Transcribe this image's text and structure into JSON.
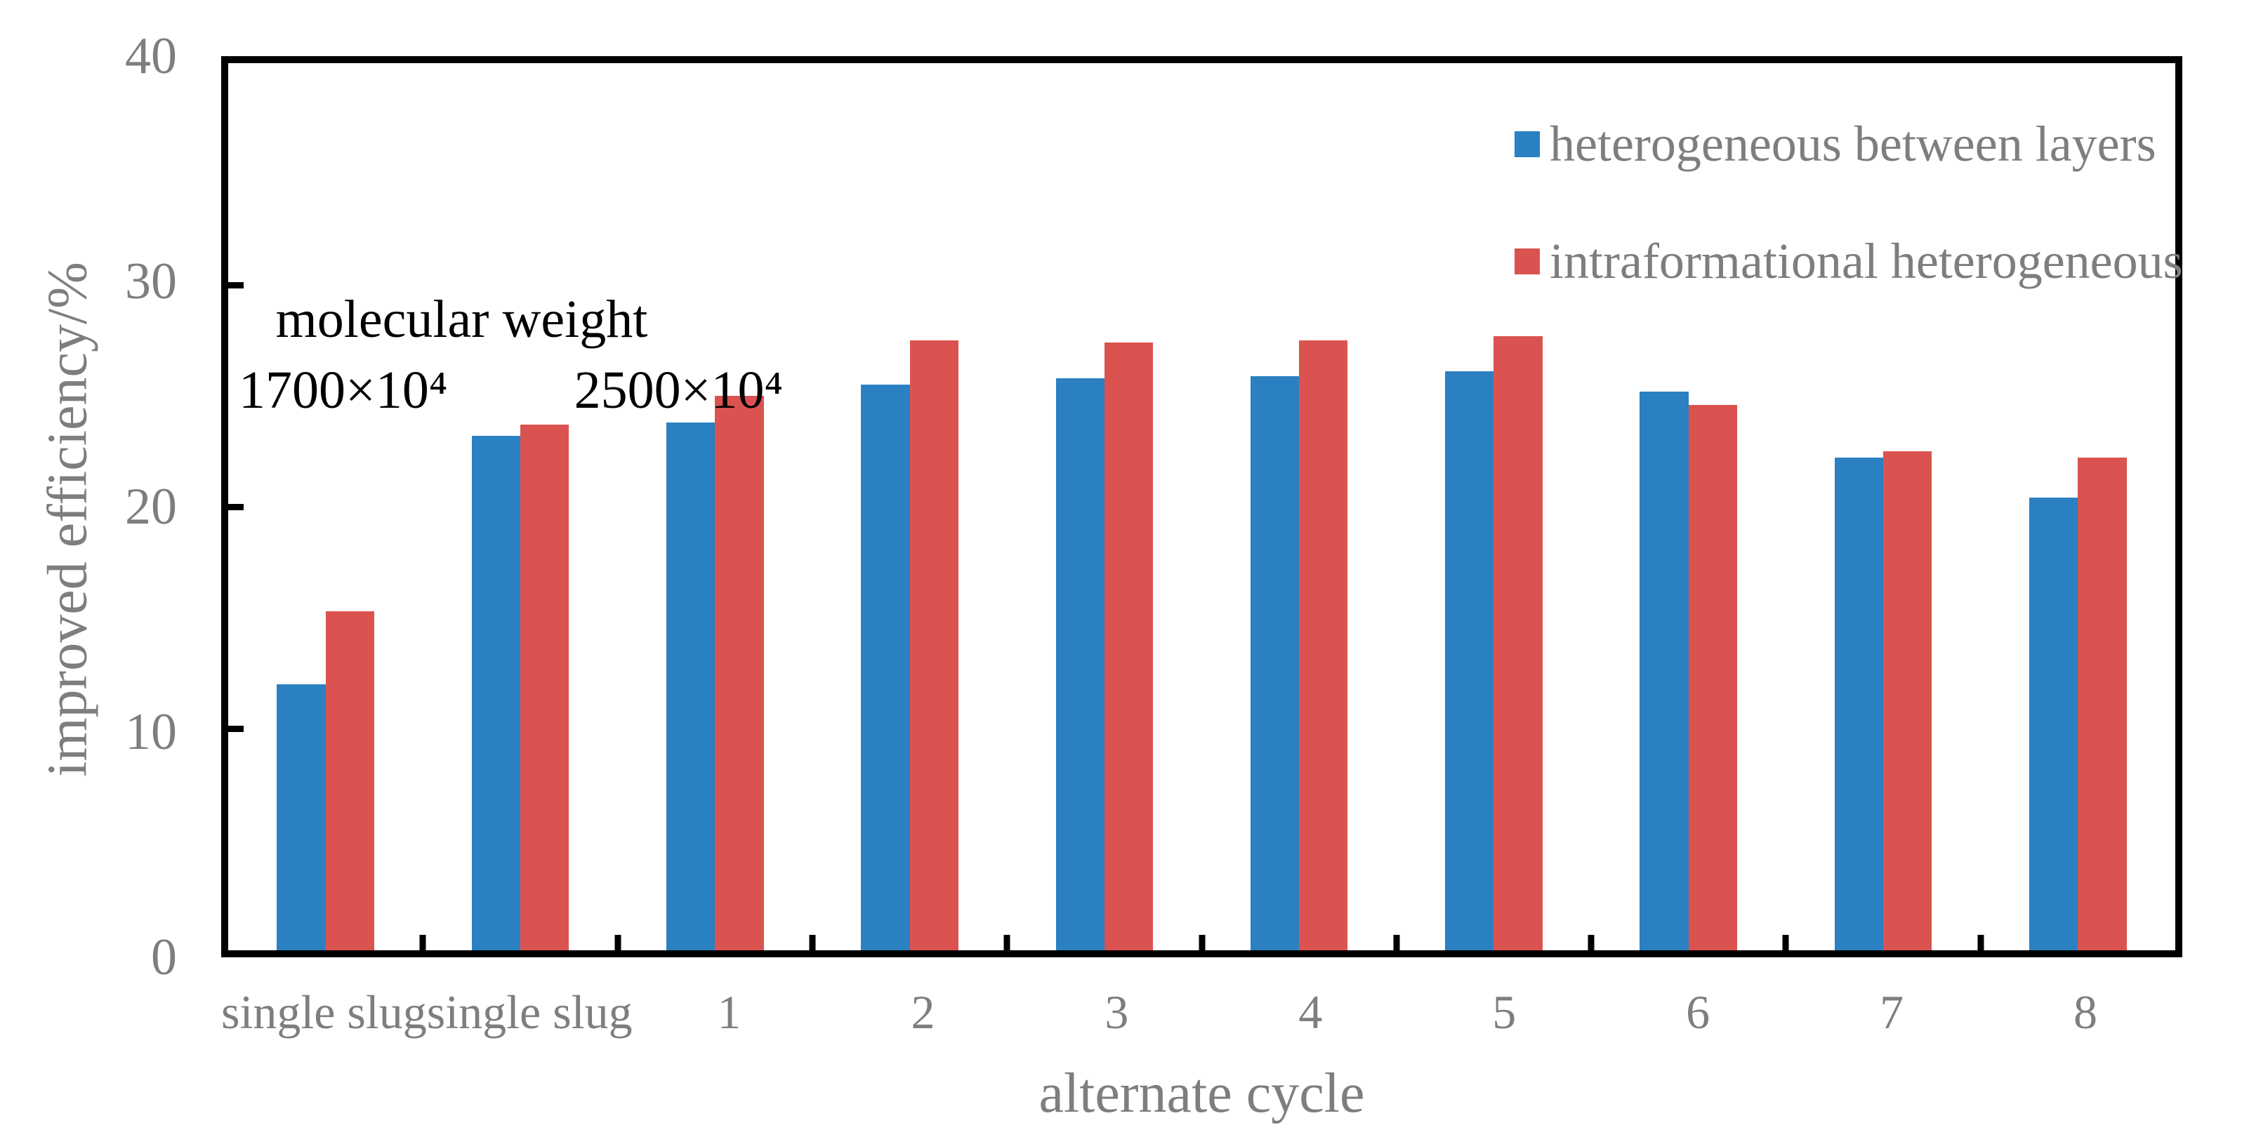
{
  "chart_data": {
    "type": "bar",
    "title": "",
    "categories": [
      "single slug",
      "single slug",
      "1",
      "2",
      "3",
      "4",
      "5",
      "6",
      "7",
      "8"
    ],
    "series": [
      {
        "name": "heterogeneous between layers",
        "color": "#2a80c1",
        "values": [
          12.0,
          23.2,
          23.8,
          25.5,
          25.8,
          25.9,
          26.1,
          25.2,
          22.2,
          20.4
        ]
      },
      {
        "name": "intraformational heterogeneous",
        "color": "#db5350",
        "values": [
          15.3,
          23.7,
          25.0,
          27.5,
          27.4,
          27.5,
          27.7,
          24.6,
          22.5,
          22.2
        ]
      }
    ],
    "xlabel": "alternate cycle",
    "ylabel": "improved efficiency/%",
    "ylim": [
      0,
      40
    ],
    "yticks": [
      0,
      10,
      20,
      30,
      40
    ],
    "grid": false,
    "legend_position": "top-right inside plot",
    "annotation": {
      "line1": "molecular weight",
      "left": "1700×10⁴",
      "right": "2500×10⁴"
    },
    "axis_color": "#000000",
    "label_color": "#7e7e7e"
  }
}
